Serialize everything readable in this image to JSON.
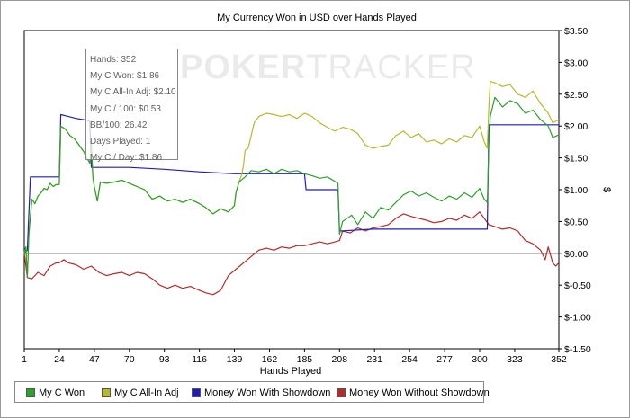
{
  "chart_data": {
    "type": "line",
    "title": "My Currency Won in USD over Hands Played",
    "xlabel": "Hands Played",
    "ylabel": "$",
    "xlim": [
      1,
      352
    ],
    "ylim": [
      -1.5,
      3.5
    ],
    "x_ticks": [
      1,
      24,
      47,
      70,
      93,
      116,
      139,
      162,
      185,
      208,
      231,
      254,
      277,
      300,
      323,
      352
    ],
    "y_ticks": [
      {
        "value": 3.5,
        "label": "$3.50"
      },
      {
        "value": 3.0,
        "label": "$3.00"
      },
      {
        "value": 2.5,
        "label": "$2.50"
      },
      {
        "value": 2.0,
        "label": "$2.00"
      },
      {
        "value": 1.5,
        "label": "$1.50"
      },
      {
        "value": 1.0,
        "label": "$1.00"
      },
      {
        "value": 0.5,
        "label": "$0.50"
      },
      {
        "value": 0.0,
        "label": "$0.00"
      },
      {
        "value": -0.5,
        "label": "$-0.50"
      },
      {
        "value": -1.0,
        "label": "$-1.00"
      },
      {
        "value": -1.5,
        "label": "$-1.50"
      }
    ],
    "grid": false,
    "legend_position": "bottom-left",
    "series": [
      {
        "name": "My C Won",
        "color": "#2ca02c",
        "points": [
          [
            1,
            0
          ],
          [
            2,
            0.1
          ],
          [
            3,
            -0.38
          ],
          [
            4,
            0.3
          ],
          [
            6,
            0.85
          ],
          [
            8,
            0.78
          ],
          [
            10,
            0.9
          ],
          [
            12,
            0.95
          ],
          [
            14,
            1.02
          ],
          [
            16,
            1.0
          ],
          [
            18,
            1.1
          ],
          [
            20,
            1.05
          ],
          [
            22,
            1.08
          ],
          [
            24,
            1.08
          ],
          [
            25,
            2.0
          ],
          [
            28,
            1.95
          ],
          [
            31,
            1.85
          ],
          [
            34,
            1.8
          ],
          [
            37,
            1.7
          ],
          [
            40,
            1.6
          ],
          [
            42,
            1.5
          ],
          [
            44,
            1.42
          ],
          [
            45,
            1.72
          ],
          [
            46,
            1.2
          ],
          [
            47,
            1.05
          ],
          [
            49,
            0.82
          ],
          [
            51,
            1.12
          ],
          [
            55,
            1.1
          ],
          [
            60,
            1.12
          ],
          [
            65,
            1.15
          ],
          [
            70,
            1.1
          ],
          [
            75,
            1.05
          ],
          [
            80,
            1.0
          ],
          [
            85,
            0.85
          ],
          [
            90,
            0.9
          ],
          [
            95,
            0.82
          ],
          [
            100,
            0.85
          ],
          [
            105,
            0.8
          ],
          [
            110,
            0.85
          ],
          [
            116,
            0.78
          ],
          [
            120,
            0.72
          ],
          [
            125,
            0.62
          ],
          [
            130,
            0.7
          ],
          [
            135,
            0.65
          ],
          [
            139,
            0.75
          ],
          [
            140,
            0.95
          ],
          [
            142,
            1.12
          ],
          [
            146,
            1.2
          ],
          [
            150,
            1.3
          ],
          [
            155,
            1.28
          ],
          [
            160,
            1.32
          ],
          [
            165,
            1.25
          ],
          [
            170,
            1.32
          ],
          [
            175,
            1.28
          ],
          [
            180,
            1.3
          ],
          [
            185,
            1.25
          ],
          [
            190,
            1.22
          ],
          [
            195,
            1.18
          ],
          [
            200,
            1.2
          ],
          [
            207,
            1.1
          ],
          [
            208,
            0.3
          ],
          [
            210,
            0.5
          ],
          [
            213,
            0.55
          ],
          [
            216,
            0.6
          ],
          [
            220,
            0.45
          ],
          [
            225,
            0.65
          ],
          [
            230,
            0.55
          ],
          [
            235,
            0.72
          ],
          [
            240,
            0.68
          ],
          [
            245,
            0.8
          ],
          [
            250,
            0.92
          ],
          [
            255,
            0.98
          ],
          [
            260,
            0.9
          ],
          [
            265,
            0.95
          ],
          [
            270,
            0.88
          ],
          [
            275,
            0.82
          ],
          [
            280,
            0.9
          ],
          [
            285,
            0.85
          ],
          [
            290,
            0.95
          ],
          [
            295,
            0.88
          ],
          [
            300,
            1.02
          ],
          [
            303,
            0.85
          ],
          [
            305,
            0.8
          ],
          [
            306,
            1.7
          ],
          [
            307,
            2.15
          ],
          [
            310,
            2.45
          ],
          [
            315,
            2.3
          ],
          [
            320,
            2.4
          ],
          [
            325,
            2.35
          ],
          [
            330,
            2.2
          ],
          [
            335,
            2.25
          ],
          [
            340,
            2.1
          ],
          [
            345,
            2.0
          ],
          [
            348,
            1.82
          ],
          [
            352,
            1.86
          ]
        ]
      },
      {
        "name": "My C All-In Adj",
        "color": "#b8b82e",
        "points": [
          [
            1,
            0
          ],
          [
            2,
            0.1
          ],
          [
            3,
            -0.38
          ],
          [
            4,
            0.3
          ],
          [
            6,
            0.85
          ],
          [
            8,
            0.78
          ],
          [
            10,
            0.9
          ],
          [
            12,
            0.95
          ],
          [
            14,
            1.02
          ],
          [
            16,
            1.0
          ],
          [
            18,
            1.1
          ],
          [
            20,
            1.05
          ],
          [
            22,
            1.08
          ],
          [
            24,
            1.08
          ],
          [
            25,
            2.0
          ],
          [
            28,
            1.95
          ],
          [
            31,
            1.85
          ],
          [
            34,
            1.8
          ],
          [
            37,
            1.7
          ],
          [
            40,
            1.6
          ],
          [
            42,
            1.5
          ],
          [
            44,
            1.42
          ],
          [
            45,
            1.72
          ],
          [
            46,
            1.2
          ],
          [
            47,
            1.05
          ],
          [
            49,
            0.82
          ],
          [
            51,
            1.12
          ],
          [
            55,
            1.1
          ],
          [
            60,
            1.12
          ],
          [
            65,
            1.15
          ],
          [
            70,
            1.1
          ],
          [
            75,
            1.05
          ],
          [
            80,
            1.0
          ],
          [
            85,
            0.85
          ],
          [
            90,
            0.9
          ],
          [
            95,
            0.82
          ],
          [
            100,
            0.85
          ],
          [
            105,
            0.8
          ],
          [
            110,
            0.85
          ],
          [
            116,
            0.78
          ],
          [
            120,
            0.72
          ],
          [
            125,
            0.62
          ],
          [
            130,
            0.7
          ],
          [
            135,
            0.65
          ],
          [
            139,
            0.75
          ],
          [
            140,
            0.95
          ],
          [
            142,
            1.12
          ],
          [
            144,
            1.25
          ],
          [
            145,
            1.4
          ],
          [
            146,
            1.62
          ],
          [
            148,
            1.65
          ],
          [
            152,
            2.05
          ],
          [
            155,
            2.15
          ],
          [
            160,
            2.2
          ],
          [
            165,
            2.18
          ],
          [
            170,
            2.15
          ],
          [
            175,
            2.18
          ],
          [
            180,
            2.12
          ],
          [
            185,
            2.2
          ],
          [
            190,
            2.15
          ],
          [
            195,
            2.05
          ],
          [
            200,
            1.98
          ],
          [
            205,
            1.92
          ],
          [
            210,
            1.98
          ],
          [
            215,
            1.95
          ],
          [
            220,
            1.88
          ],
          [
            225,
            1.7
          ],
          [
            230,
            1.65
          ],
          [
            235,
            1.68
          ],
          [
            240,
            1.7
          ],
          [
            245,
            1.85
          ],
          [
            250,
            1.92
          ],
          [
            255,
            1.82
          ],
          [
            260,
            1.88
          ],
          [
            265,
            1.75
          ],
          [
            270,
            1.78
          ],
          [
            275,
            1.72
          ],
          [
            280,
            1.8
          ],
          [
            285,
            1.75
          ],
          [
            290,
            1.85
          ],
          [
            295,
            1.82
          ],
          [
            300,
            2.0
          ],
          [
            303,
            1.75
          ],
          [
            305,
            1.65
          ],
          [
            306,
            2.3
          ],
          [
            307,
            2.7
          ],
          [
            310,
            2.68
          ],
          [
            315,
            2.62
          ],
          [
            320,
            2.65
          ],
          [
            325,
            2.5
          ],
          [
            330,
            2.45
          ],
          [
            335,
            2.55
          ],
          [
            340,
            2.35
          ],
          [
            345,
            2.2
          ],
          [
            348,
            2.05
          ],
          [
            352,
            2.1
          ]
        ]
      },
      {
        "name": "Money Won With Showdown",
        "color": "#1e1eb4",
        "points": [
          [
            1,
            0
          ],
          [
            3,
            0.05
          ],
          [
            5,
            1.2
          ],
          [
            10,
            1.2
          ],
          [
            18,
            1.2
          ],
          [
            24,
            1.2
          ],
          [
            25,
            2.18
          ],
          [
            30,
            2.15
          ],
          [
            35,
            2.12
          ],
          [
            40,
            2.1
          ],
          [
            44,
            2.08
          ],
          [
            45,
            1.35
          ],
          [
            70,
            1.35
          ],
          [
            93,
            1.32
          ],
          [
            116,
            1.28
          ],
          [
            139,
            1.25
          ],
          [
            185,
            1.25
          ],
          [
            186,
            1.0
          ],
          [
            207,
            1.0
          ],
          [
            208,
            0.35
          ],
          [
            230,
            0.38
          ],
          [
            231,
            0.38
          ],
          [
            254,
            0.38
          ],
          [
            277,
            0.38
          ],
          [
            300,
            0.38
          ],
          [
            305,
            0.38
          ],
          [
            306,
            2.02
          ],
          [
            330,
            2.02
          ],
          [
            352,
            2.02
          ]
        ]
      },
      {
        "name": "Money Won Without Showdown",
        "color": "#b42a2a",
        "points": [
          [
            1,
            0
          ],
          [
            3,
            -0.38
          ],
          [
            6,
            -0.4
          ],
          [
            10,
            -0.3
          ],
          [
            14,
            -0.35
          ],
          [
            18,
            -0.2
          ],
          [
            22,
            -0.15
          ],
          [
            24,
            -0.15
          ],
          [
            27,
            -0.1
          ],
          [
            30,
            -0.15
          ],
          [
            35,
            -0.18
          ],
          [
            40,
            -0.25
          ],
          [
            45,
            -0.2
          ],
          [
            50,
            -0.3
          ],
          [
            55,
            -0.35
          ],
          [
            60,
            -0.32
          ],
          [
            65,
            -0.3
          ],
          [
            70,
            -0.35
          ],
          [
            75,
            -0.3
          ],
          [
            80,
            -0.32
          ],
          [
            85,
            -0.4
          ],
          [
            90,
            -0.5
          ],
          [
            95,
            -0.55
          ],
          [
            100,
            -0.5
          ],
          [
            105,
            -0.55
          ],
          [
            110,
            -0.52
          ],
          [
            116,
            -0.58
          ],
          [
            120,
            -0.62
          ],
          [
            125,
            -0.65
          ],
          [
            130,
            -0.58
          ],
          [
            135,
            -0.35
          ],
          [
            140,
            -0.25
          ],
          [
            145,
            -0.15
          ],
          [
            150,
            -0.05
          ],
          [
            155,
            0.05
          ],
          [
            160,
            0.08
          ],
          [
            165,
            0.05
          ],
          [
            170,
            0.1
          ],
          [
            175,
            0.08
          ],
          [
            180,
            0.12
          ],
          [
            185,
            0.12
          ],
          [
            190,
            0.15
          ],
          [
            195,
            0.18
          ],
          [
            200,
            0.15
          ],
          [
            205,
            0.18
          ],
          [
            208,
            0.2
          ],
          [
            210,
            0.35
          ],
          [
            215,
            0.32
          ],
          [
            220,
            0.4
          ],
          [
            225,
            0.35
          ],
          [
            230,
            0.4
          ],
          [
            235,
            0.42
          ],
          [
            240,
            0.45
          ],
          [
            245,
            0.55
          ],
          [
            250,
            0.62
          ],
          [
            255,
            0.58
          ],
          [
            260,
            0.55
          ],
          [
            265,
            0.52
          ],
          [
            270,
            0.48
          ],
          [
            275,
            0.5
          ],
          [
            280,
            0.55
          ],
          [
            285,
            0.52
          ],
          [
            290,
            0.6
          ],
          [
            295,
            0.55
          ],
          [
            300,
            0.65
          ],
          [
            303,
            0.55
          ],
          [
            306,
            0.45
          ],
          [
            310,
            0.42
          ],
          [
            315,
            0.38
          ],
          [
            320,
            0.4
          ],
          [
            325,
            0.35
          ],
          [
            330,
            0.2
          ],
          [
            335,
            0.15
          ],
          [
            340,
            0.05
          ],
          [
            343,
            -0.1
          ],
          [
            345,
            0.1
          ],
          [
            348,
            -0.15
          ],
          [
            350,
            -0.2
          ],
          [
            352,
            -0.15
          ]
        ]
      }
    ]
  },
  "tooltip": {
    "lines": [
      "Hands: 352",
      "My C Won: $1.86",
      "My C All-In Adj: $2.10",
      "My C / 100: $0.53",
      "BB/100: 26.42",
      "Days Played: 1",
      "My C / Day: $1.86"
    ]
  },
  "watermark": {
    "brand_a": "POKER",
    "brand_b": "TRACKER"
  },
  "legend": [
    {
      "label": "My C Won",
      "color": "#2ca02c"
    },
    {
      "label": "My C All-In Adj",
      "color": "#b8b82e"
    },
    {
      "label": "Money Won With Showdown",
      "color": "#1e1eb4"
    },
    {
      "label": "Money Won Without Showdown",
      "color": "#b42a2a"
    }
  ]
}
